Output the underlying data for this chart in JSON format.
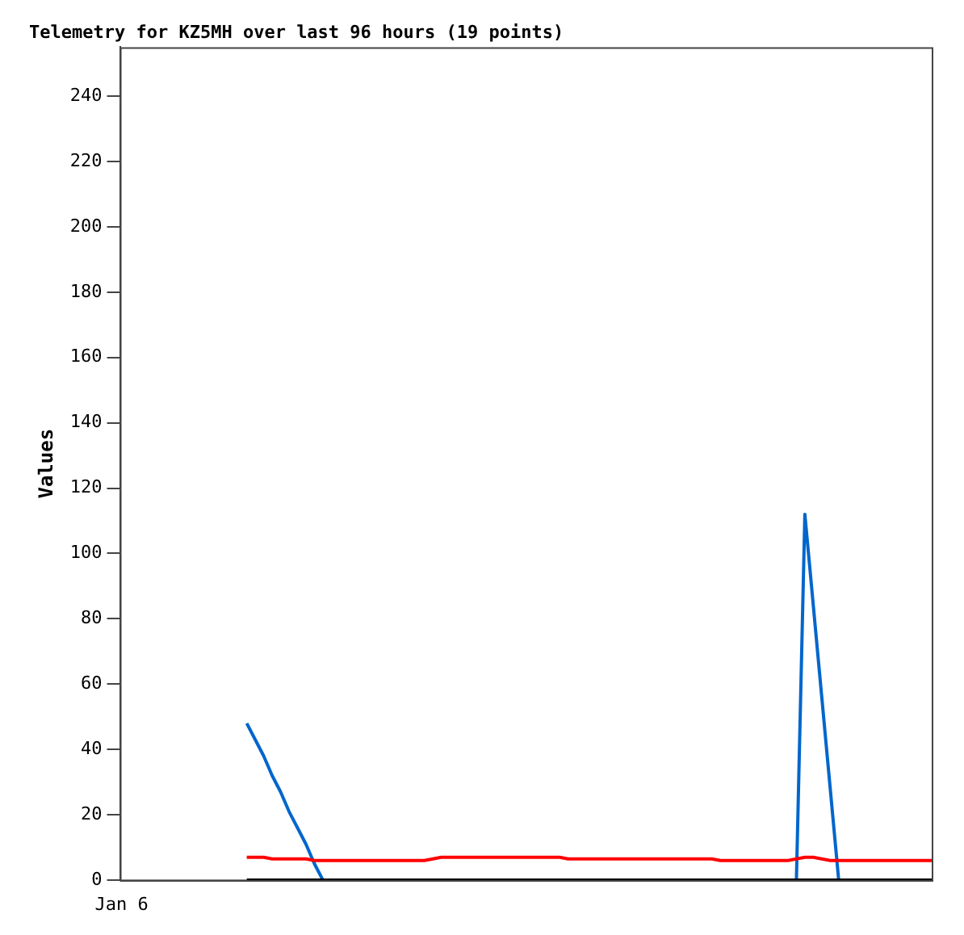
{
  "chart_data": {
    "type": "line",
    "title": "Telemetry for KZ5MH over last 96 hours (19 points)",
    "ylabel": "Values",
    "categories": [
      null,
      null,
      null,
      null,
      null,
      null,
      null,
      null,
      null,
      null,
      null,
      null,
      null,
      null,
      null,
      null,
      null,
      null,
      null,
      null,
      null,
      null,
      null,
      null,
      null,
      null,
      null,
      null,
      null,
      null,
      null,
      null,
      null,
      null,
      null,
      null,
      null,
      null,
      null,
      null,
      null,
      null,
      null,
      null,
      null,
      null,
      null,
      null,
      null,
      null,
      null,
      null,
      null,
      null,
      null,
      null,
      null,
      null,
      null,
      null,
      null,
      null,
      null,
      null,
      null,
      null,
      null,
      null,
      null,
      null,
      null,
      null,
      null,
      null,
      null,
      null,
      null,
      null,
      null,
      null,
      null,
      null,
      null,
      null,
      null,
      null,
      null,
      null,
      null,
      null,
      null,
      null,
      null,
      null,
      null,
      null,
      null
    ],
    "ylim": [
      0,
      255
    ],
    "yticks": [
      0,
      20,
      40,
      60,
      80,
      100,
      120,
      140,
      160,
      180,
      200,
      220,
      240
    ],
    "tick_labels": "y",
    "annotations": [
      "Jan 6"
    ],
    "grid": false,
    "marker": "none",
    "line_style": "solid",
    "series": [
      {
        "color": "#0066cc",
        "values": [
          null,
          null,
          null,
          null,
          null,
          null,
          null,
          null,
          null,
          null,
          null,
          null,
          null,
          null,
          null,
          48,
          43,
          38,
          32,
          27,
          21,
          16,
          11,
          5,
          0,
          null,
          null,
          null,
          null,
          null,
          null,
          null,
          null,
          null,
          null,
          null,
          null,
          null,
          null,
          null,
          null,
          null,
          null,
          null,
          null,
          null,
          null,
          null,
          null,
          null,
          null,
          null,
          null,
          null,
          null,
          null,
          null,
          null,
          null,
          null,
          null,
          null,
          null,
          null,
          null,
          null,
          null,
          null,
          null,
          null,
          null,
          null,
          null,
          null,
          null,
          null,
          null,
          null,
          null,
          null,
          0,
          112,
          84,
          56,
          28,
          0,
          null,
          null,
          null,
          null,
          null,
          null,
          null,
          null,
          null,
          null,
          null
        ]
      },
      {
        "color": "#ff0000",
        "values": [
          null,
          null,
          null,
          null,
          null,
          null,
          null,
          null,
          null,
          null,
          null,
          null,
          null,
          null,
          null,
          7,
          7,
          7,
          6.5,
          6.5,
          6.5,
          6.5,
          6.5,
          6,
          6,
          6,
          6,
          6,
          6,
          6,
          6,
          6,
          6,
          6,
          6,
          6,
          6,
          6.5,
          7,
          7,
          7,
          7,
          7,
          7,
          7,
          7,
          7,
          7,
          7,
          7,
          7,
          7,
          7,
          6.5,
          6.5,
          6.5,
          6.5,
          6.5,
          6.5,
          6.5,
          6.5,
          6.5,
          6.5,
          6.5,
          6.5,
          6.5,
          6.5,
          6.5,
          6.5,
          6.5,
          6.5,
          6,
          6,
          6,
          6,
          6,
          6,
          6,
          6,
          6,
          6.5,
          7,
          7,
          6.5,
          6,
          6,
          6,
          6,
          6,
          6,
          6,
          6,
          6,
          6,
          6,
          6,
          6
        ]
      },
      {
        "color": "#000000",
        "values": [
          null,
          null,
          null,
          null,
          null,
          null,
          null,
          null,
          null,
          null,
          null,
          null,
          null,
          null,
          null,
          0,
          0,
          0,
          0,
          0,
          0,
          0,
          0,
          0,
          0,
          0,
          0,
          0,
          0,
          0,
          0,
          0,
          0,
          0,
          0,
          0,
          0,
          0,
          0,
          0,
          0,
          0,
          0,
          0,
          0,
          0,
          0,
          0,
          0,
          0,
          0,
          0,
          0,
          0,
          0,
          0,
          0,
          0,
          0,
          0,
          0,
          0,
          0,
          0,
          0,
          0,
          0,
          0,
          0,
          0,
          0,
          0,
          0,
          0,
          0,
          0,
          0,
          0,
          0,
          0,
          0,
          0,
          0,
          0,
          0,
          0,
          0,
          0,
          0,
          0,
          0,
          0,
          0,
          0,
          0,
          0,
          0
        ]
      }
    ]
  }
}
